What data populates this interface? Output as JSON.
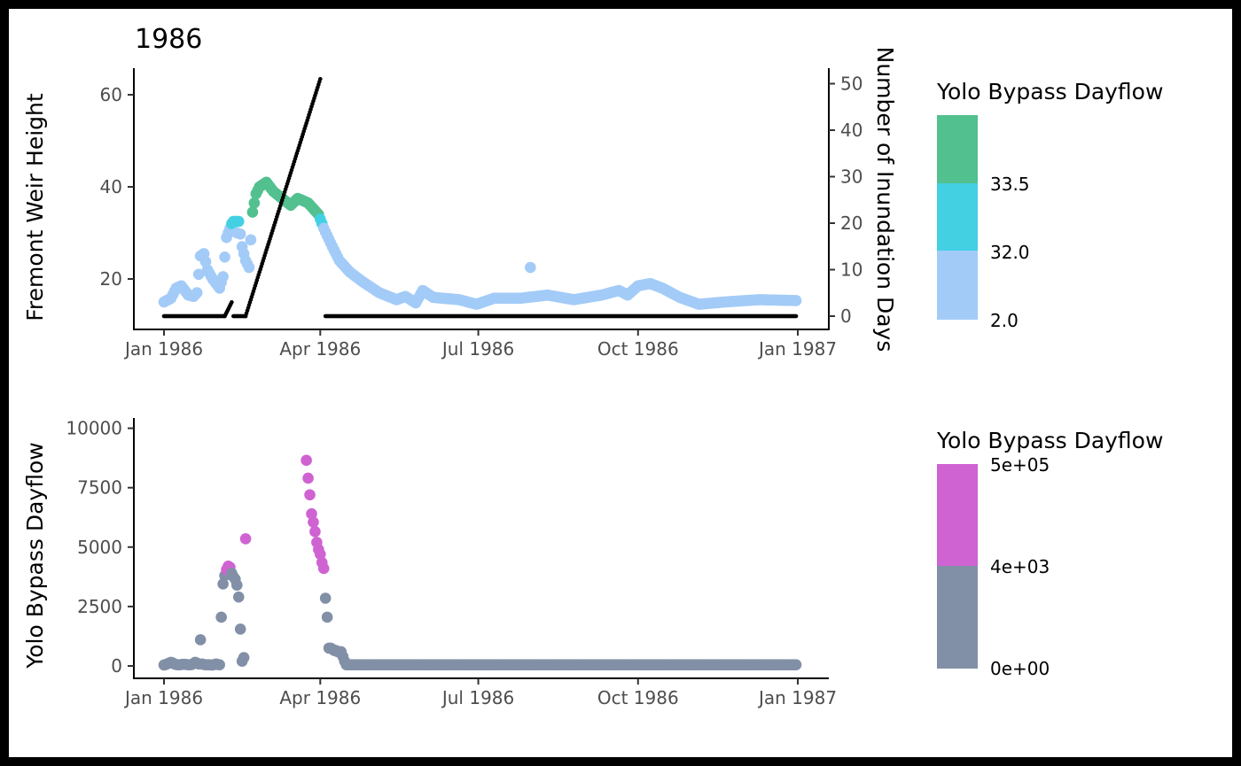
{
  "chart_data": [
    {
      "type": "scatter",
      "title": "1986",
      "xlabel": "",
      "ylabel": "Fremont Weir Height",
      "ylabel_right": "Number of Inundation Days",
      "x_ticks": [
        "Jan 1986",
        "Apr 1986",
        "Jul 1986",
        "Oct 1986",
        "Jan 1987"
      ],
      "x_tick_dates": [
        "1986-01-01",
        "1986-04-01",
        "1986-07-01",
        "1986-10-01",
        "1987-01-01"
      ],
      "ylim": [
        8,
        63
      ],
      "y_ticks": [
        20,
        40,
        60
      ],
      "y2lim": [
        -2,
        53
      ],
      "y2_ticks": [
        0,
        10,
        20,
        30,
        40,
        50
      ],
      "grid": false,
      "legend": {
        "title": "Yolo Bypass Dayflow",
        "placement": "right",
        "labels": [
          "33.5",
          "32.0",
          "2.0"
        ],
        "colors": [
          "#52c08f",
          "#43d0e3",
          "#a3cbf8"
        ]
      },
      "series": [
        {
          "axis": "left",
          "colors": {
            "low": "#a3cbf8",
            "mid": "#43d0e3",
            "high": "#52c08f"
          },
          "keyframes": [
            [
              "1986-01-01",
              15.0
            ],
            [
              "1986-01-05",
              15.8
            ],
            [
              "1986-01-08",
              18.0
            ],
            [
              "1986-01-11",
              18.5
            ],
            [
              "1986-01-15",
              16.5
            ],
            [
              "1986-01-18",
              16.2
            ],
            [
              "1986-01-20",
              17.0
            ],
            [
              "1986-01-22",
              25.0
            ],
            [
              "1986-01-24",
              25.5
            ],
            [
              "1986-01-26",
              22.0
            ],
            [
              "1986-01-29",
              20.0
            ],
            [
              "1986-02-02",
              18.0
            ],
            [
              "1986-02-04",
              20.5
            ],
            [
              "1986-02-06",
              29.0
            ],
            [
              "1986-02-08",
              31.0
            ],
            [
              "1986-02-10",
              32.5
            ],
            [
              "1986-02-13",
              32.5
            ],
            [
              "1986-02-15",
              27.0
            ],
            [
              "1986-02-17",
              24.0
            ],
            [
              "1986-02-19",
              22.5
            ],
            [
              "1986-02-21",
              34.5
            ],
            [
              "1986-02-23",
              38.5
            ],
            [
              "1986-02-25",
              40.0
            ],
            [
              "1986-03-01",
              41.0
            ],
            [
              "1986-03-05",
              39.0
            ],
            [
              "1986-03-10",
              37.5
            ],
            [
              "1986-03-15",
              36.0
            ],
            [
              "1986-03-19",
              37.5
            ],
            [
              "1986-03-25",
              36.5
            ],
            [
              "1986-03-31",
              34.0
            ],
            [
              "1986-04-03",
              31.0
            ],
            [
              "1986-04-08",
              27.0
            ],
            [
              "1986-04-12",
              24.0
            ],
            [
              "1986-04-18",
              21.5
            ],
            [
              "1986-04-25",
              19.5
            ],
            [
              "1986-05-05",
              17.0
            ],
            [
              "1986-05-15",
              15.5
            ],
            [
              "1986-05-20",
              16.2
            ],
            [
              "1986-05-26",
              14.8
            ],
            [
              "1986-05-30",
              17.5
            ],
            [
              "1986-06-05",
              16.0
            ],
            [
              "1986-06-20",
              15.5
            ],
            [
              "1986-06-30",
              14.5
            ],
            [
              "1986-07-10",
              15.8
            ],
            [
              "1986-07-25",
              15.8
            ],
            [
              "1986-08-10",
              16.5
            ],
            [
              "1986-08-25",
              15.5
            ],
            [
              "1986-09-10",
              16.5
            ],
            [
              "1986-09-20",
              17.5
            ],
            [
              "1986-09-25",
              16.5
            ],
            [
              "1986-10-01",
              18.5
            ],
            [
              "1986-10-08",
              19.0
            ],
            [
              "1986-10-15",
              18.0
            ],
            [
              "1986-10-25",
              16.0
            ],
            [
              "1986-11-05",
              14.5
            ],
            [
              "1986-11-20",
              15.0
            ],
            [
              "1986-12-10",
              15.5
            ],
            [
              "1986-12-31",
              15.3
            ]
          ],
          "extra_points": [
            [
              "1986-07-31",
              22.5
            ],
            [
              "1986-02-09",
              32.0
            ],
            [
              "1986-02-12",
              30.0
            ]
          ],
          "thresholds": {
            "high_after": "1986-02-20",
            "high_before": "1986-04-01",
            "high_min": 33.5,
            "mid_min": 32.0
          }
        },
        {
          "axis": "right",
          "color": "#000000",
          "segments": [
            {
              "start": "1986-01-01",
              "end": "1986-02-05",
              "from": 0,
              "to": 0
            },
            {
              "start": "1986-02-05",
              "end": "1986-02-09",
              "from": 0,
              "to": 3
            },
            {
              "start": "1986-02-10",
              "end": "1986-02-17",
              "from": 0,
              "to": 0
            },
            {
              "start": "1986-02-17",
              "end": "1986-04-01",
              "from": 0,
              "to": 51
            },
            {
              "start": "1986-04-04",
              "end": "1986-12-31",
              "from": 0,
              "to": 0
            }
          ]
        }
      ]
    },
    {
      "type": "scatter",
      "title": "",
      "xlabel": "",
      "ylabel": "Yolo Bypass Dayflow",
      "x_ticks": [
        "Jan 1986",
        "Apr 1986",
        "Jul 1986",
        "Oct 1986",
        "Jan 1987"
      ],
      "x_tick_dates": [
        "1986-01-01",
        "1986-04-01",
        "1986-07-01",
        "1986-10-01",
        "1987-01-01"
      ],
      "ylim": [
        -400,
        10500
      ],
      "y_ticks": [
        0,
        2500,
        5000,
        7500,
        10000
      ],
      "grid": false,
      "legend": {
        "title": "Yolo Bypass Dayflow",
        "placement": "right",
        "labels": [
          "5e+05",
          "4e+03",
          "0e+00"
        ],
        "colors": [
          "#cf63d2",
          "#8290a7"
        ]
      },
      "series": [
        {
          "colors": {
            "low": "#8290a7",
            "high": "#cf63d2"
          },
          "high_threshold": 4000,
          "points": [
            [
              "1986-01-01",
              40
            ],
            [
              "1986-01-02",
              60
            ],
            [
              "1986-01-03",
              90
            ],
            [
              "1986-01-04",
              120
            ],
            [
              "1986-01-05",
              150
            ],
            [
              "1986-01-06",
              130
            ],
            [
              "1986-01-07",
              80
            ],
            [
              "1986-01-08",
              60
            ],
            [
              "1986-01-09",
              50
            ],
            [
              "1986-01-10",
              50
            ],
            [
              "1986-01-11",
              60
            ],
            [
              "1986-01-12",
              70
            ],
            [
              "1986-01-13",
              70
            ],
            [
              "1986-01-14",
              60
            ],
            [
              "1986-01-15",
              50
            ],
            [
              "1986-01-16",
              50
            ],
            [
              "1986-01-17",
              60
            ],
            [
              "1986-01-18",
              100
            ],
            [
              "1986-01-19",
              150
            ],
            [
              "1986-01-20",
              120
            ],
            [
              "1986-01-21",
              80
            ],
            [
              "1986-01-22",
              1100
            ],
            [
              "1986-01-23",
              80
            ],
            [
              "1986-01-24",
              60
            ],
            [
              "1986-01-25",
              50
            ],
            [
              "1986-01-26",
              50
            ],
            [
              "1986-01-27",
              50
            ],
            [
              "1986-01-28",
              40
            ],
            [
              "1986-01-29",
              40
            ],
            [
              "1986-01-30",
              60
            ],
            [
              "1986-01-31",
              80
            ],
            [
              "1986-02-01",
              60
            ],
            [
              "1986-02-02",
              50
            ],
            [
              "1986-02-03",
              2050
            ],
            [
              "1986-02-04",
              3450
            ],
            [
              "1986-02-05",
              3800
            ],
            [
              "1986-02-06",
              4050
            ],
            [
              "1986-02-07",
              4200
            ],
            [
              "1986-02-08",
              4150
            ],
            [
              "1986-02-09",
              3900
            ],
            [
              "1986-02-10",
              3750
            ],
            [
              "1986-02-11",
              3650
            ],
            [
              "1986-02-12",
              3400
            ],
            [
              "1986-02-13",
              2900
            ],
            [
              "1986-02-14",
              1550
            ],
            [
              "1986-02-15",
              200
            ],
            [
              "1986-02-16",
              350
            ],
            [
              "1986-02-17",
              5350
            ],
            [
              "1986-03-24",
              8650
            ],
            [
              "1986-03-25",
              7900
            ],
            [
              "1986-03-26",
              7200
            ],
            [
              "1986-03-27",
              6400
            ],
            [
              "1986-03-28",
              6050
            ],
            [
              "1986-03-29",
              5650
            ],
            [
              "1986-03-30",
              5200
            ],
            [
              "1986-03-31",
              4900
            ],
            [
              "1986-04-01",
              4700
            ],
            [
              "1986-04-02",
              4350
            ],
            [
              "1986-04-03",
              4100
            ],
            [
              "1986-04-04",
              2850
            ],
            [
              "1986-04-05",
              2050
            ],
            [
              "1986-04-06",
              750
            ],
            [
              "1986-04-07",
              750
            ],
            [
              "1986-04-08",
              700
            ],
            [
              "1986-04-09",
              650
            ],
            [
              "1986-04-10",
              650
            ],
            [
              "1986-04-11",
              600
            ],
            [
              "1986-04-12",
              600
            ],
            [
              "1986-04-13",
              600
            ],
            [
              "1986-04-14",
              400
            ],
            [
              "1986-04-15",
              200
            ]
          ],
          "baseline_after": {
            "start": "1986-04-16",
            "end": "1986-12-31",
            "value": 50
          }
        }
      ]
    }
  ]
}
